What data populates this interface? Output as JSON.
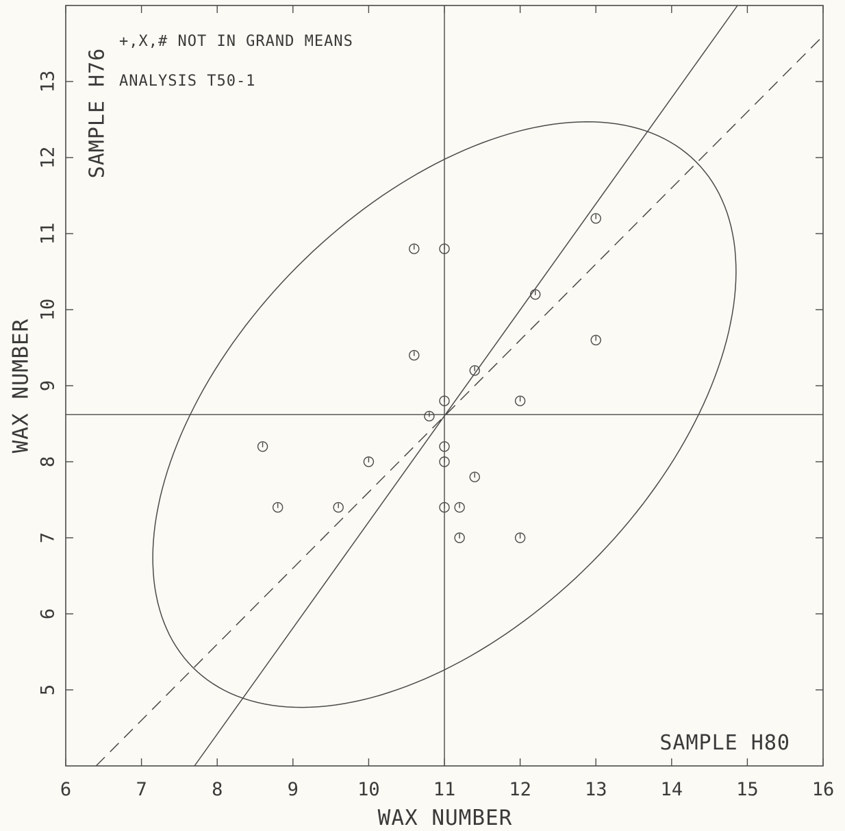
{
  "chart_data": {
    "type": "scatter",
    "title": "",
    "xlabel": "WAX NUMBER",
    "ylabel": "WAX NUMBER",
    "xlim": [
      6,
      16
    ],
    "ylim": [
      4,
      14
    ],
    "x_ticks": [
      "6",
      "7",
      "8",
      "9",
      "10",
      "11",
      "12",
      "13",
      "14",
      "15",
      "16"
    ],
    "y_ticks": [
      "5",
      "6",
      "7",
      "8",
      "9",
      "10",
      "11",
      "12",
      "13"
    ],
    "sample_x": "SAMPLE H80",
    "sample_y": "SAMPLE H76",
    "notes": [
      "+,X,# NOT IN GRAND MEANS",
      "ANALYSIS  T50-1"
    ],
    "marker_symbol": "O",
    "points": [
      {
        "x": 8.6,
        "y": 8.2
      },
      {
        "x": 8.8,
        "y": 7.4
      },
      {
        "x": 9.6,
        "y": 7.4
      },
      {
        "x": 10.0,
        "y": 8.0
      },
      {
        "x": 10.6,
        "y": 10.8
      },
      {
        "x": 10.6,
        "y": 9.4
      },
      {
        "x": 10.8,
        "y": 8.6
      },
      {
        "x": 11.0,
        "y": 10.8
      },
      {
        "x": 11.0,
        "y": 8.8
      },
      {
        "x": 11.0,
        "y": 8.2
      },
      {
        "x": 11.0,
        "y": 8.0
      },
      {
        "x": 11.0,
        "y": 7.4
      },
      {
        "x": 11.2,
        "y": 7.4
      },
      {
        "x": 11.2,
        "y": 7.0
      },
      {
        "x": 11.4,
        "y": 9.2
      },
      {
        "x": 11.4,
        "y": 7.8
      },
      {
        "x": 12.0,
        "y": 8.8
      },
      {
        "x": 12.0,
        "y": 7.0
      },
      {
        "x": 12.2,
        "y": 10.2
      },
      {
        "x": 13.0,
        "y": 11.2
      },
      {
        "x": 13.0,
        "y": 9.6
      }
    ],
    "grand_mean": {
      "x": 11.0,
      "y": 8.62
    },
    "fit_solid": {
      "x1": 7.7,
      "y1": 4.0,
      "x2": 14.87,
      "y2": 14.0
    },
    "fit_dashed": {
      "x1": 6.4,
      "y1": 4.0,
      "x2": 16.0,
      "y2": 13.6
    },
    "ellipse": {
      "cx": 11.0,
      "cy": 8.62,
      "semi_major": 4.7,
      "semi_minor": 2.75,
      "angle_deg": 45
    }
  }
}
